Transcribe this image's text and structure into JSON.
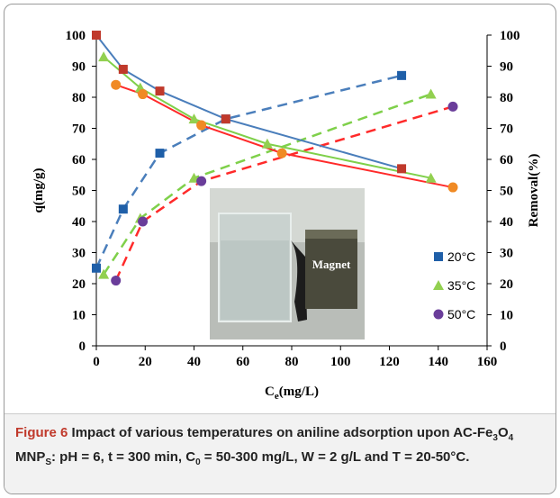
{
  "chart_data": {
    "type": "line",
    "x_label": [
      "C",
      "e",
      "(mg/L)"
    ],
    "y_label": "q(mg/g)",
    "y2_label": "Removal(%)",
    "inset_label": "Magnet",
    "xlim": [
      0,
      160
    ],
    "xticks": [
      0,
      20,
      40,
      60,
      80,
      100,
      120,
      140,
      160
    ],
    "ylim": [
      0,
      100
    ],
    "yticks": [
      0,
      10,
      20,
      30,
      40,
      50,
      60,
      70,
      80,
      90,
      100
    ],
    "y2lim": [
      0,
      100
    ],
    "y2ticks": [
      0,
      10,
      20,
      30,
      40,
      50,
      60,
      70,
      80,
      90,
      100
    ],
    "series": [
      {
        "name": "20°C",
        "color": "#4a7ebb",
        "marker_color": "#1f5fa8",
        "marker": "square",
        "dashed": true,
        "x": [
          0,
          11,
          26,
          53,
          125
        ],
        "values": [
          25,
          44,
          62,
          73,
          87
        ]
      },
      {
        "name": "35°C",
        "color": "#7fd04a",
        "marker_color": "#92d050",
        "marker": "triangle",
        "dashed": true,
        "x": [
          3,
          18,
          40,
          137
        ],
        "values": [
          23,
          41,
          54,
          81
        ]
      },
      {
        "name": "50°C",
        "color": "#ff2a2a",
        "marker_color": "#6a3d9a",
        "marker": "circle",
        "dashed": true,
        "x": [
          8,
          19,
          43,
          146
        ],
        "values": [
          21,
          40,
          53,
          77
        ]
      },
      {
        "color": "#4a7ebb",
        "marker_color": "#c0392b",
        "marker": "square",
        "dashed": false,
        "axis": "y2",
        "x": [
          0,
          11,
          26,
          53,
          125
        ],
        "values": [
          100,
          89,
          82,
          73,
          57
        ]
      },
      {
        "color": "#7fd04a",
        "marker_color": "#92d050",
        "marker": "triangle",
        "dashed": false,
        "axis": "y2",
        "x": [
          3,
          18,
          40,
          70,
          137
        ],
        "values": [
          93,
          83,
          73,
          65,
          54
        ]
      },
      {
        "color": "#ff2a2a",
        "marker_color": "#f08a24",
        "marker": "circle",
        "dashed": false,
        "axis": "y2",
        "x": [
          8,
          19,
          43,
          76,
          146
        ],
        "values": [
          84,
          81,
          71,
          62,
          51
        ]
      }
    ]
  },
  "caption": {
    "label": "Figure 6",
    "parts": [
      " Impact of various temperatures on aniline adsorption upon AC-Fe",
      "3",
      "O",
      "4",
      " MNP",
      "S",
      ": pH = 6, t = 300 min, C",
      "0",
      " = 50-300 mg/L, W = 2 g/L and T = 20-50°C."
    ]
  }
}
